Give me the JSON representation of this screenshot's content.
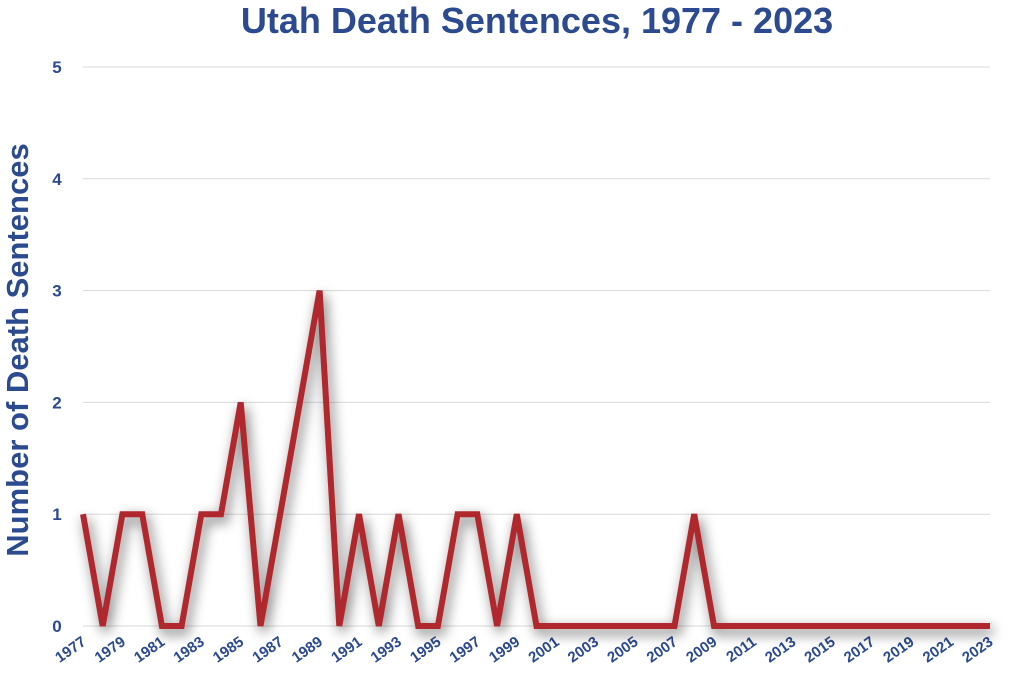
{
  "chart_data": {
    "type": "line",
    "title": "Utah Death Sentences, 1977 - 2023",
    "xlabel": "",
    "ylabel": "Number of Death Sentences",
    "ylim": [
      0,
      5
    ],
    "yticks": [
      0,
      1,
      2,
      3,
      4,
      5
    ],
    "xlim": [
      1977,
      2023
    ],
    "xtick_labels": [
      "1977",
      "1979",
      "1981",
      "1983",
      "1985",
      "1987",
      "1989",
      "1991",
      "1993",
      "1995",
      "1997",
      "1999",
      "2001",
      "2003",
      "2005",
      "2007",
      "2009",
      "2011",
      "2013",
      "2015",
      "2017",
      "2019",
      "2021",
      "2023"
    ],
    "grid": true,
    "legend": "none",
    "series": [
      {
        "color": "#b0282e",
        "x": [
          1977,
          1978,
          1979,
          1980,
          1981,
          1982,
          1983,
          1984,
          1985,
          1986,
          1987,
          1988,
          1989,
          1990,
          1991,
          1992,
          1993,
          1994,
          1995,
          1996,
          1997,
          1998,
          1999,
          2000,
          2001,
          2002,
          2003,
          2004,
          2005,
          2006,
          2007,
          2008,
          2009,
          2010,
          2011,
          2012,
          2013,
          2014,
          2015,
          2016,
          2017,
          2018,
          2019,
          2020,
          2021,
          2022,
          2023
        ],
        "values": [
          1,
          0,
          1,
          1,
          0,
          0,
          1,
          1,
          2,
          0,
          1,
          2,
          3,
          0,
          1,
          0,
          1,
          0,
          0,
          1,
          1,
          0,
          1,
          0,
          0,
          0,
          0,
          0,
          0,
          0,
          0,
          1,
          0,
          0,
          0,
          0,
          0,
          0,
          0,
          0,
          0,
          0,
          0,
          0,
          0,
          0,
          0
        ]
      }
    ]
  }
}
